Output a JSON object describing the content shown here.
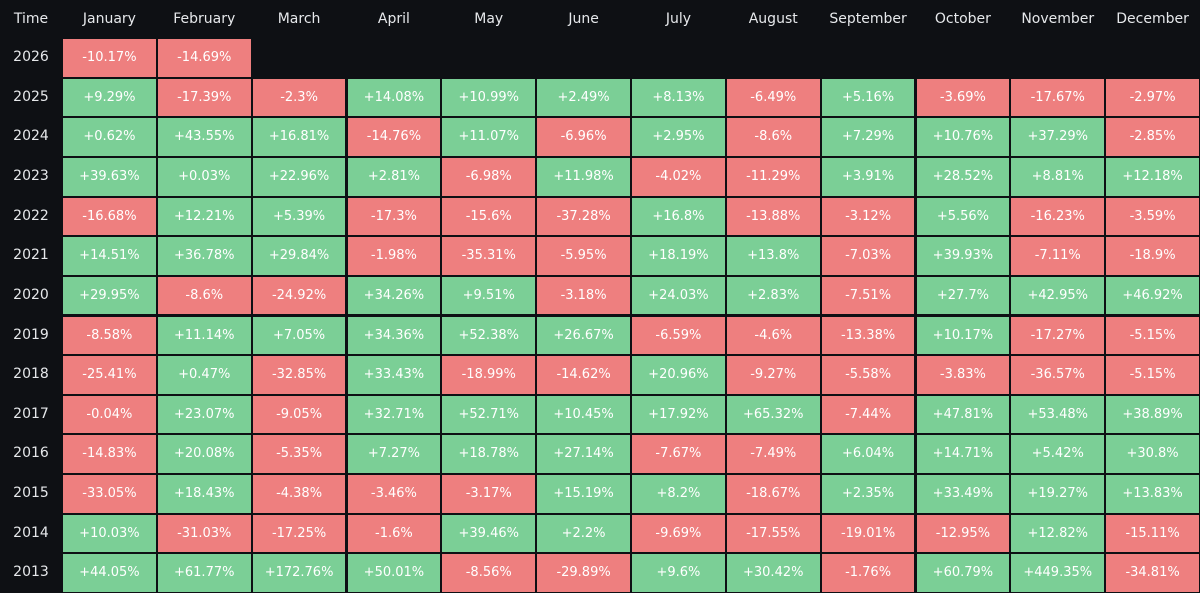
{
  "chart_data": {
    "type": "heatmap",
    "corner_label": "Time",
    "columns": [
      "January",
      "February",
      "March",
      "April",
      "May",
      "June",
      "July",
      "August",
      "September",
      "October",
      "November",
      "December"
    ],
    "rows": [
      {
        "year": "2026",
        "values": [
          "-10.17%",
          "-14.69%",
          "",
          "",
          "",
          "",
          "",
          "",
          "",
          "",
          "",
          ""
        ]
      },
      {
        "year": "2025",
        "values": [
          "+9.29%",
          "-17.39%",
          "-2.3%",
          "+14.08%",
          "+10.99%",
          "+2.49%",
          "+8.13%",
          "-6.49%",
          "+5.16%",
          "-3.69%",
          "-17.67%",
          "-2.97%"
        ]
      },
      {
        "year": "2024",
        "values": [
          "+0.62%",
          "+43.55%",
          "+16.81%",
          "-14.76%",
          "+11.07%",
          "-6.96%",
          "+2.95%",
          "-8.6%",
          "+7.29%",
          "+10.76%",
          "+37.29%",
          "-2.85%"
        ]
      },
      {
        "year": "2023",
        "values": [
          "+39.63%",
          "+0.03%",
          "+22.96%",
          "+2.81%",
          "-6.98%",
          "+11.98%",
          "-4.02%",
          "-11.29%",
          "+3.91%",
          "+28.52%",
          "+8.81%",
          "+12.18%"
        ]
      },
      {
        "year": "2022",
        "values": [
          "-16.68%",
          "+12.21%",
          "+5.39%",
          "-17.3%",
          "-15.6%",
          "-37.28%",
          "+16.8%",
          "-13.88%",
          "-3.12%",
          "+5.56%",
          "-16.23%",
          "-3.59%"
        ]
      },
      {
        "year": "2021",
        "values": [
          "+14.51%",
          "+36.78%",
          "+29.84%",
          "-1.98%",
          "-35.31%",
          "-5.95%",
          "+18.19%",
          "+13.8%",
          "-7.03%",
          "+39.93%",
          "-7.11%",
          "-18.9%"
        ]
      },
      {
        "year": "2020",
        "values": [
          "+29.95%",
          "-8.6%",
          "-24.92%",
          "+34.26%",
          "+9.51%",
          "-3.18%",
          "+24.03%",
          "+2.83%",
          "-7.51%",
          "+27.7%",
          "+42.95%",
          "+46.92%"
        ]
      },
      {
        "year": "2019",
        "values": [
          "-8.58%",
          "+11.14%",
          "+7.05%",
          "+34.36%",
          "+52.38%",
          "+26.67%",
          "-6.59%",
          "-4.6%",
          "-13.38%",
          "+10.17%",
          "-17.27%",
          "-5.15%"
        ]
      },
      {
        "year": "2018",
        "values": [
          "-25.41%",
          "+0.47%",
          "-32.85%",
          "+33.43%",
          "-18.99%",
          "-14.62%",
          "+20.96%",
          "-9.27%",
          "-5.58%",
          "-3.83%",
          "-36.57%",
          "-5.15%"
        ]
      },
      {
        "year": "2017",
        "values": [
          "-0.04%",
          "+23.07%",
          "-9.05%",
          "+32.71%",
          "+52.71%",
          "+10.45%",
          "+17.92%",
          "+65.32%",
          "-7.44%",
          "+47.81%",
          "+53.48%",
          "+38.89%"
        ]
      },
      {
        "year": "2016",
        "values": [
          "-14.83%",
          "+20.08%",
          "-5.35%",
          "+7.27%",
          "+18.78%",
          "+27.14%",
          "-7.67%",
          "-7.49%",
          "+6.04%",
          "+14.71%",
          "+5.42%",
          "+30.8%"
        ]
      },
      {
        "year": "2015",
        "values": [
          "-33.05%",
          "+18.43%",
          "-4.38%",
          "-3.46%",
          "-3.17%",
          "+15.19%",
          "+8.2%",
          "-18.67%",
          "+2.35%",
          "+33.49%",
          "+19.27%",
          "+13.83%"
        ]
      },
      {
        "year": "2014",
        "values": [
          "+10.03%",
          "-31.03%",
          "-17.25%",
          "-1.6%",
          "+39.46%",
          "+2.2%",
          "-9.69%",
          "-17.55%",
          "-19.01%",
          "-12.95%",
          "+12.82%",
          "-15.11%"
        ]
      },
      {
        "year": "2013",
        "values": [
          "+44.05%",
          "+61.77%",
          "+172.76%",
          "+50.01%",
          "-8.56%",
          "-29.89%",
          "+9.6%",
          "+30.42%",
          "-1.76%",
          "+60.79%",
          "+449.35%",
          "-34.81%"
        ]
      }
    ],
    "colors": {
      "positive": "#7bcf96",
      "negative": "#ee7f7f",
      "background": "#0e1014",
      "text": "#e6e8eb"
    }
  }
}
